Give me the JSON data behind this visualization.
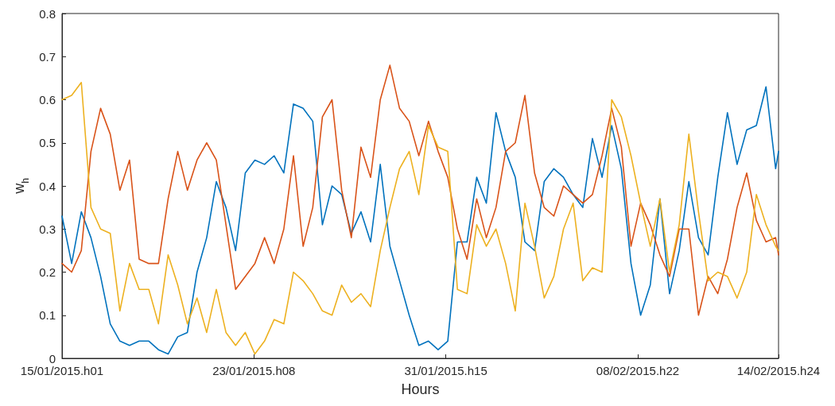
{
  "chart_data": {
    "type": "line",
    "xlabel": "Hours",
    "ylabel": "w$_{h}$",
    "x": [
      "2015-01-15T01:00",
      "2015-01-15T11:00",
      "2015-01-15T21:00",
      "2015-01-16T07:00",
      "2015-01-16T17:00",
      "2015-01-17T03:00",
      "2015-01-17T13:00",
      "2015-01-17T23:00",
      "2015-01-18T09:00",
      "2015-01-18T19:00",
      "2015-01-19T05:00",
      "2015-01-19T15:00",
      "2015-01-20T01:00",
      "2015-01-20T11:00",
      "2015-01-20T21:00",
      "2015-01-21T07:00",
      "2015-01-21T17:00",
      "2015-01-22T03:00",
      "2015-01-22T13:00",
      "2015-01-22T23:00",
      "2015-01-23T09:00",
      "2015-01-23T19:00",
      "2015-01-24T05:00",
      "2015-01-24T15:00",
      "2015-01-25T01:00",
      "2015-01-25T11:00",
      "2015-01-25T21:00",
      "2015-01-26T07:00",
      "2015-01-26T17:00",
      "2015-01-27T03:00",
      "2015-01-27T13:00",
      "2015-01-27T23:00",
      "2015-01-28T09:00",
      "2015-01-28T19:00",
      "2015-01-29T05:00",
      "2015-01-29T15:00",
      "2015-01-30T01:00",
      "2015-01-30T11:00",
      "2015-01-30T21:00",
      "2015-01-31T07:00",
      "2015-01-31T17:00",
      "2015-02-01T03:00",
      "2015-02-01T13:00",
      "2015-02-01T23:00",
      "2015-02-02T09:00",
      "2015-02-02T19:00",
      "2015-02-03T05:00",
      "2015-02-03T15:00",
      "2015-02-04T01:00",
      "2015-02-04T11:00",
      "2015-02-04T21:00",
      "2015-02-05T07:00",
      "2015-02-05T17:00",
      "2015-02-06T03:00",
      "2015-02-06T13:00",
      "2015-02-06T23:00",
      "2015-02-07T09:00",
      "2015-02-07T19:00",
      "2015-02-08T05:00",
      "2015-02-08T15:00",
      "2015-02-09T01:00",
      "2015-02-09T11:00",
      "2015-02-09T21:00",
      "2015-02-10T07:00",
      "2015-02-10T17:00",
      "2015-02-11T03:00",
      "2015-02-11T13:00",
      "2015-02-11T23:00",
      "2015-02-12T09:00",
      "2015-02-12T19:00",
      "2015-02-13T05:00",
      "2015-02-13T15:00",
      "2015-02-14T01:00",
      "2015-02-14T11:00",
      "2015-02-14T21:00",
      "2015-02-15T00:00"
    ],
    "series": [
      {
        "color": "#0072bd",
        "values": [
          0.33,
          0.22,
          0.34,
          0.28,
          0.19,
          0.08,
          0.04,
          0.03,
          0.04,
          0.04,
          0.02,
          0.01,
          0.05,
          0.06,
          0.2,
          0.28,
          0.41,
          0.35,
          0.25,
          0.43,
          0.46,
          0.45,
          0.47,
          0.43,
          0.59,
          0.58,
          0.55,
          0.31,
          0.4,
          0.38,
          0.29,
          0.34,
          0.27,
          0.45,
          0.26,
          0.18,
          0.1,
          0.03,
          0.04,
          0.02,
          0.04,
          0.27,
          0.27,
          0.42,
          0.36,
          0.57,
          0.48,
          0.42,
          0.27,
          0.25,
          0.41,
          0.44,
          0.42,
          0.38,
          0.35,
          0.51,
          0.42,
          0.54,
          0.44,
          0.22,
          0.1,
          0.17,
          0.37,
          0.15,
          0.25,
          0.41,
          0.28,
          0.24,
          0.42,
          0.57,
          0.45,
          0.53,
          0.54,
          0.63,
          0.44,
          0.48
        ]
      },
      {
        "color": "#d95319",
        "values": [
          0.22,
          0.2,
          0.25,
          0.48,
          0.58,
          0.52,
          0.39,
          0.46,
          0.23,
          0.22,
          0.22,
          0.37,
          0.48,
          0.39,
          0.46,
          0.5,
          0.46,
          0.31,
          0.16,
          0.19,
          0.22,
          0.28,
          0.22,
          0.3,
          0.47,
          0.26,
          0.35,
          0.56,
          0.6,
          0.39,
          0.28,
          0.49,
          0.42,
          0.6,
          0.68,
          0.58,
          0.55,
          0.47,
          0.55,
          0.48,
          0.42,
          0.3,
          0.23,
          0.37,
          0.28,
          0.35,
          0.48,
          0.5,
          0.61,
          0.43,
          0.35,
          0.33,
          0.4,
          0.38,
          0.36,
          0.38,
          0.47,
          0.58,
          0.49,
          0.26,
          0.36,
          0.31,
          0.24,
          0.19,
          0.3,
          0.3,
          0.1,
          0.19,
          0.15,
          0.23,
          0.35,
          0.43,
          0.32,
          0.27,
          0.28,
          0.24
        ]
      },
      {
        "color": "#edb120",
        "values": [
          0.6,
          0.61,
          0.64,
          0.35,
          0.3,
          0.29,
          0.11,
          0.22,
          0.16,
          0.16,
          0.08,
          0.24,
          0.17,
          0.08,
          0.14,
          0.06,
          0.16,
          0.06,
          0.03,
          0.06,
          0.01,
          0.04,
          0.09,
          0.08,
          0.2,
          0.18,
          0.15,
          0.11,
          0.1,
          0.17,
          0.13,
          0.15,
          0.12,
          0.25,
          0.35,
          0.44,
          0.48,
          0.38,
          0.54,
          0.49,
          0.48,
          0.16,
          0.15,
          0.31,
          0.26,
          0.3,
          0.22,
          0.11,
          0.36,
          0.26,
          0.14,
          0.19,
          0.3,
          0.36,
          0.18,
          0.21,
          0.2,
          0.6,
          0.56,
          0.47,
          0.36,
          0.26,
          0.37,
          0.2,
          0.31,
          0.52,
          0.34,
          0.18,
          0.2,
          0.19,
          0.14,
          0.2,
          0.38,
          0.31,
          0.26,
          0.25
        ]
      }
    ],
    "xlim": [
      "2015-01-15T01:00",
      "2015-02-15T00:00"
    ],
    "xticks": [
      {
        "value": "2015-01-15T01:00",
        "label": "15/01/2015.h01"
      },
      {
        "value": "2015-01-23T08:00",
        "label": "23/01/2015.h08"
      },
      {
        "value": "2015-01-31T15:00",
        "label": "31/01/2015.h15"
      },
      {
        "value": "2015-02-08T22:00",
        "label": "08/02/2015.h22"
      },
      {
        "value": "2015-02-15T00:00",
        "label": "14/02/2015.h24"
      }
    ],
    "ylim": [
      0,
      0.8
    ],
    "yticks": [
      {
        "value": 0,
        "label": "0"
      },
      0.1,
      0.2,
      0.3,
      0.4,
      0.5,
      0.6,
      0.7,
      0.8
    ],
    "marker": "none",
    "line_style": "solid",
    "grid": false
  }
}
